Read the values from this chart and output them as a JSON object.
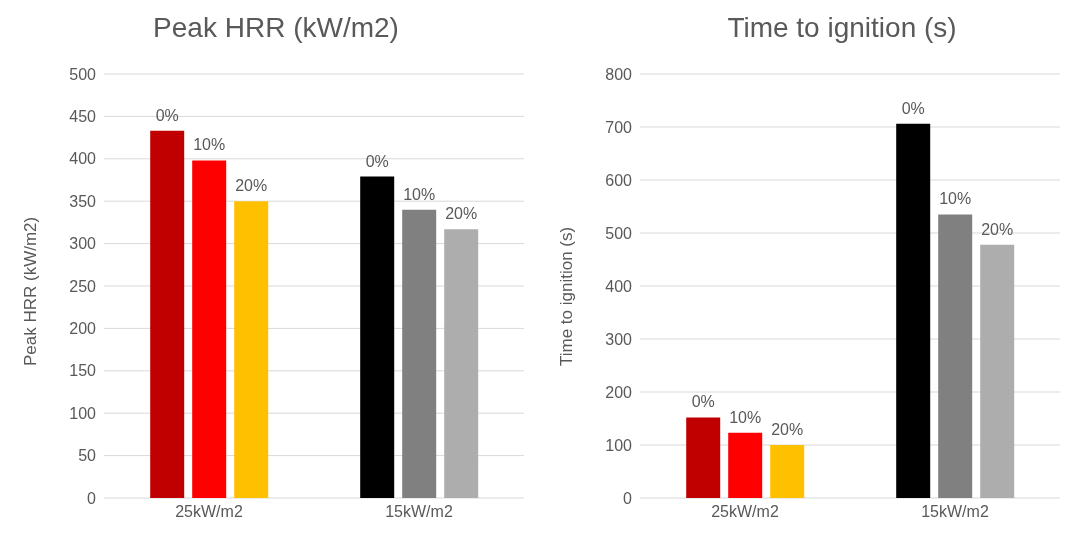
{
  "chart_data": [
    {
      "type": "bar",
      "title": "Peak HRR (kW/m2)",
      "ylabel": "Peak HRR (kW/m2)",
      "categories": [
        "25kW/m2",
        "15kW/m2"
      ],
      "ylim": [
        0,
        500
      ],
      "yticks": [
        0,
        50,
        100,
        150,
        200,
        250,
        300,
        350,
        400,
        450,
        500
      ],
      "grid": "y",
      "series": [
        {
          "name": "0%",
          "colors": [
            "#c00000",
            "#000000"
          ],
          "values": [
            433,
            379
          ]
        },
        {
          "name": "10%",
          "colors": [
            "#ff0000",
            "#808080"
          ],
          "values": [
            398,
            340
          ]
        },
        {
          "name": "20%",
          "colors": [
            "#ffc000",
            "#adadad"
          ],
          "values": [
            350,
            317
          ]
        }
      ]
    },
    {
      "type": "bar",
      "title": "Time to ignition (s)",
      "ylabel": "Time to ignition (s)",
      "categories": [
        "25kW/m2",
        "15kW/m2"
      ],
      "ylim": [
        0,
        800
      ],
      "yticks": [
        0,
        100,
        200,
        300,
        400,
        500,
        600,
        700,
        800
      ],
      "grid": "y",
      "series": [
        {
          "name": "0%",
          "colors": [
            "#c00000",
            "#000000"
          ],
          "values": [
            152,
            706
          ]
        },
        {
          "name": "10%",
          "colors": [
            "#ff0000",
            "#808080"
          ],
          "values": [
            123,
            535
          ]
        },
        {
          "name": "20%",
          "colors": [
            "#ffc000",
            "#adadad"
          ],
          "values": [
            100,
            478
          ]
        }
      ]
    }
  ]
}
